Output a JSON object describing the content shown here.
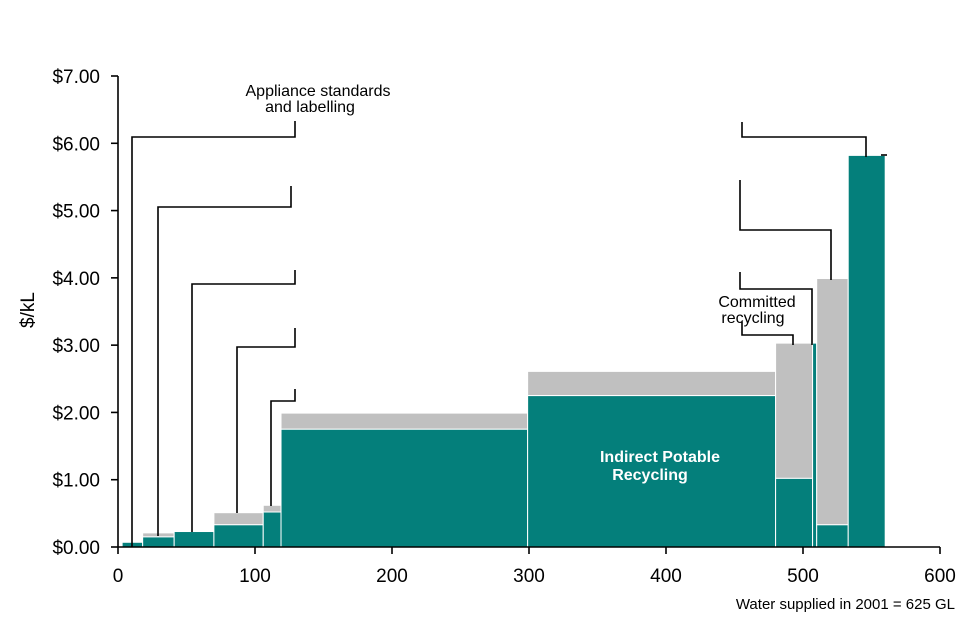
{
  "chart_data": {
    "type": "bar",
    "subtype": "variable-width cost curve",
    "xlabel": "",
    "ylabel": "$/kL",
    "xlim": [
      0,
      600
    ],
    "ylim": [
      0,
      7
    ],
    "x_ticks": [
      {
        "value": 0,
        "label": "0"
      },
      {
        "value": 100,
        "label": "100"
      },
      {
        "value": 200,
        "label": "200"
      },
      {
        "value": 300,
        "label": "300"
      },
      {
        "value": 400,
        "label": "400"
      },
      {
        "value": 500,
        "label": "500"
      },
      {
        "value": 600,
        "label": "600"
      }
    ],
    "y_ticks": [
      {
        "value": 0,
        "label": "$0.00"
      },
      {
        "value": 1,
        "label": "$1.00"
      },
      {
        "value": 2,
        "label": "$2.00"
      },
      {
        "value": 3,
        "label": "$3.00"
      },
      {
        "value": 4,
        "label": "$4.00"
      },
      {
        "value": 5,
        "label": "$5.00"
      },
      {
        "value": 6,
        "label": "$6.00"
      },
      {
        "value": 7,
        "label": "$7.00"
      }
    ],
    "grid": false,
    "colors": {
      "base": "#047f7b",
      "upper": "#c0c0c0"
    },
    "series": [
      {
        "values": [
          0.07,
          0.15,
          0.23,
          0.33,
          0.52,
          1.75,
          2.25,
          1.02,
          3.03,
          0.33,
          5.82
        ]
      },
      {
        "values": [
          0.07,
          0.21,
          0.23,
          0.51,
          0.62,
          1.99,
          2.61,
          3.03,
          3.03,
          3.99,
          5.82
        ]
      }
    ],
    "bars": [
      {
        "x0": 3,
        "x1": 18,
        "base": 0.07,
        "top": 0.07
      },
      {
        "x0": 18,
        "x1": 41,
        "base": 0.15,
        "top": 0.21
      },
      {
        "x0": 41,
        "x1": 70,
        "base": 0.23,
        "top": 0.23
      },
      {
        "x0": 70,
        "x1": 106,
        "base": 0.33,
        "top": 0.51
      },
      {
        "x0": 106,
        "x1": 119,
        "base": 0.52,
        "top": 0.62
      },
      {
        "x0": 119,
        "x1": 299,
        "base": 1.75,
        "top": 1.99
      },
      {
        "x0": 299,
        "x1": 480,
        "base": 2.25,
        "top": 2.61
      },
      {
        "x0": 480,
        "x1": 507,
        "base": 1.02,
        "top": 3.03
      },
      {
        "x0": 507,
        "x1": 510,
        "base": 3.03,
        "top": 3.03
      },
      {
        "x0": 510,
        "x1": 533,
        "base": 0.33,
        "top": 3.99
      },
      {
        "x0": 533,
        "x1": 560,
        "base": 5.82,
        "top": 5.82
      }
    ],
    "annotations": [
      {
        "lines": [
          "Appliance standards",
          "and labelling"
        ]
      },
      {
        "lines": [
          "Committed",
          "recycling"
        ]
      },
      {
        "lines": [
          "Indirect Potable",
          "Recycling"
        ]
      }
    ],
    "note": "Water supplied in 2001 = 625 GL"
  }
}
